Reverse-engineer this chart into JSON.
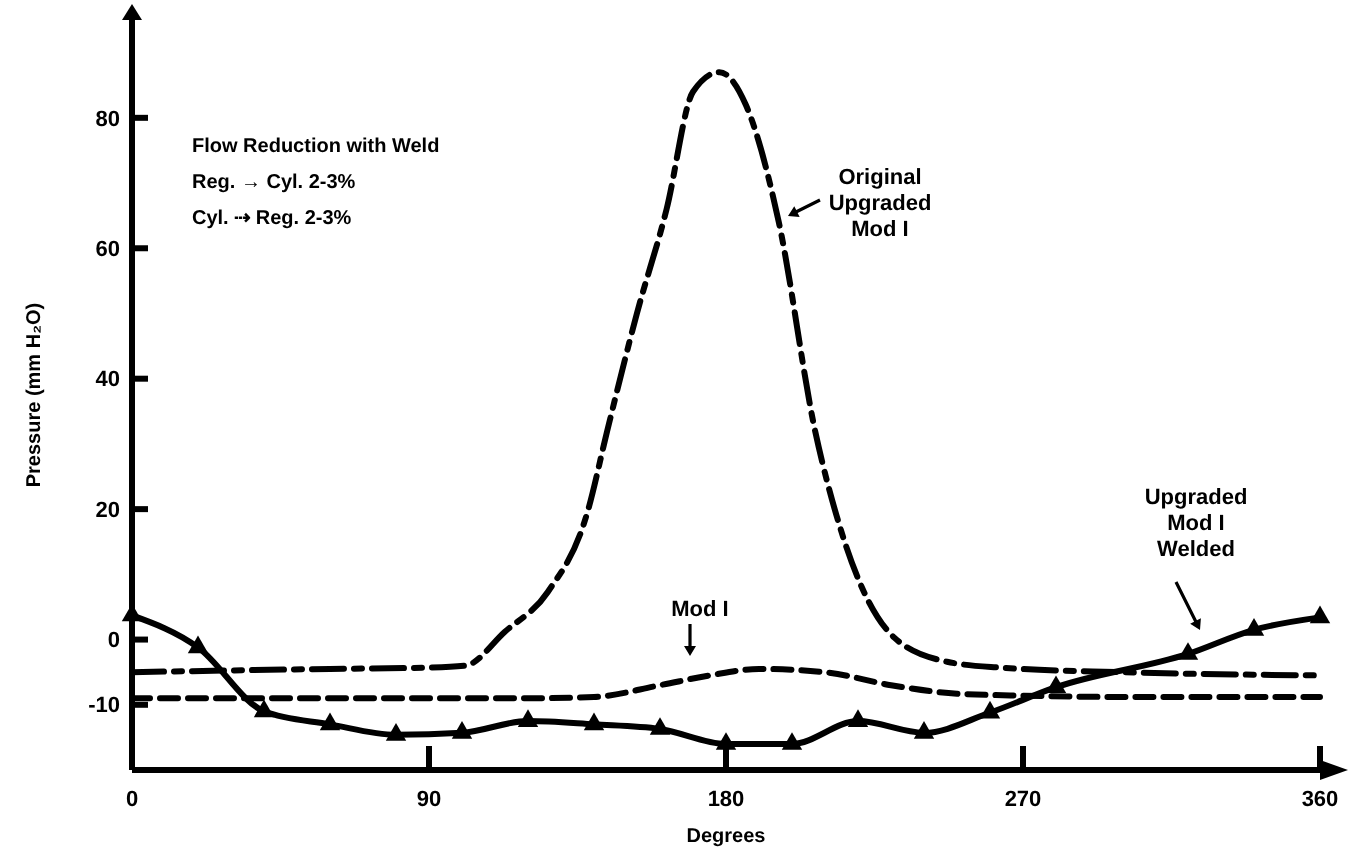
{
  "chart_data": {
    "type": "line",
    "xlabel": "Degrees",
    "ylabel": "Pressure (mm H₂O)",
    "xlim": [
      0,
      360
    ],
    "ylim": [
      -20,
      95
    ],
    "xticks": [
      0,
      90,
      180,
      270,
      360
    ],
    "yticks": [
      -10,
      0,
      20,
      40,
      60,
      80
    ],
    "grid": false,
    "annotations": [
      "Flow Reduction with Weld",
      "Reg. → Cyl. 2-3%",
      "Cyl. ⇢ Reg. 2-3%"
    ],
    "series": [
      {
        "name": "Original Upgraded Mod I",
        "color": "#000000",
        "line_style": "dashed",
        "x": [
          0,
          60,
          90,
          101,
          113,
          126,
          138,
          144,
          153,
          162,
          170,
          178,
          186,
          196,
          207,
          215,
          231,
          247,
          263,
          300,
          360
        ],
        "values": [
          -5,
          -4.5,
          -4.3,
          -4,
          1.2,
          7.3,
          19.5,
          32,
          50,
          66,
          84,
          87,
          82,
          64,
          32,
          16.5,
          0.3,
          -3.4,
          -4.3,
          -5,
          -5.5
        ]
      },
      {
        "name": "Mod I",
        "color": "#000000",
        "line_style": "dashed",
        "x": [
          0,
          60,
          120,
          140,
          160,
          175,
          190,
          210,
          230,
          250,
          270,
          300,
          360
        ],
        "values": [
          -9,
          -9,
          -9,
          -8.8,
          -7,
          -5.5,
          -4.5,
          -5,
          -7,
          -8.3,
          -8.6,
          -8.8,
          -8.8
        ]
      },
      {
        "name": "Upgraded Mod I Welded",
        "color": "#000000",
        "line_style": "solid",
        "marker": "triangle",
        "x": [
          0,
          20,
          40,
          60,
          80,
          100,
          120,
          140,
          160,
          180,
          200,
          220,
          240,
          260,
          280,
          320,
          340,
          360
        ],
        "values": [
          3.7,
          -1.2,
          -11,
          -13,
          -14.6,
          -14.3,
          -12.5,
          -13,
          -13.7,
          -16,
          -16,
          -12.5,
          -14.3,
          -11.2,
          -7.3,
          -2.2,
          1.5,
          3.4
        ]
      }
    ]
  }
}
